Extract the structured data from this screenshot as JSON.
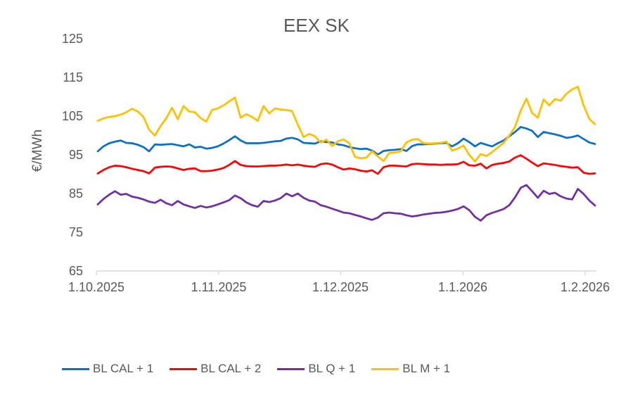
{
  "colors": {
    "text": "#595959",
    "axis": "#d9d9d9",
    "background": "#ffffff"
  },
  "chart_data": {
    "type": "line",
    "title": "EEX SK",
    "xlabel": "",
    "ylabel": "€/MWh",
    "ylim": [
      65,
      125
    ],
    "y_ticks": [
      65,
      75,
      85,
      95,
      105,
      115,
      125
    ],
    "y_tick_labels": [
      "125",
      "115",
      "105",
      "95",
      "85",
      "75",
      "65"
    ],
    "x_tick_labels": [
      "1.10.2025",
      "1.11.2025",
      "1.12.2025",
      "1.1.2026",
      "1.2.2026"
    ],
    "grid": false,
    "legend_position": "bottom",
    "series": [
      {
        "name": "BL CAL + 1",
        "color": "#0b6fc4",
        "values": [
          95.9,
          97.2,
          98.0,
          98.4,
          98.7,
          98.1,
          98.0,
          97.6,
          97.0,
          95.9,
          97.7,
          97.6,
          97.7,
          97.8,
          97.5,
          97.2,
          97.7,
          96.9,
          97.1,
          96.6,
          96.8,
          97.2,
          97.9,
          98.8,
          99.8,
          98.7,
          98.0,
          98.0,
          98.0,
          98.1,
          98.3,
          98.5,
          98.6,
          99.2,
          99.4,
          99.0,
          98.1,
          98.0,
          97.9,
          98.5,
          98.3,
          98.2,
          97.7,
          97.5,
          97.0,
          96.7,
          96.5,
          96.6,
          96.1,
          95.1,
          96.0,
          96.2,
          96.3,
          96.5,
          96.0,
          97.3,
          97.7,
          97.7,
          97.8,
          97.9,
          98.0,
          98.1,
          97.2,
          98.0,
          99.2,
          98.3,
          97.2,
          98.1,
          97.6,
          97.2,
          98.0,
          98.7,
          99.8,
          100.9,
          102.2,
          101.8,
          101.2,
          99.6,
          100.9,
          100.6,
          100.3,
          99.9,
          99.4,
          99.6,
          100.0,
          99.1,
          98.2,
          97.8
        ]
      },
      {
        "name": "BL CAL + 2",
        "color": "#fe0000",
        "values": [
          90.2,
          91.1,
          91.8,
          92.2,
          92.1,
          91.8,
          91.4,
          91.1,
          90.8,
          90.2,
          91.7,
          91.9,
          92.0,
          91.9,
          91.5,
          91.1,
          91.4,
          91.5,
          90.8,
          90.8,
          90.9,
          91.2,
          91.6,
          92.4,
          93.4,
          92.4,
          92.1,
          92.0,
          92.0,
          92.1,
          92.2,
          92.2,
          92.3,
          92.5,
          92.3,
          92.5,
          92.2,
          92.0,
          91.9,
          92.6,
          92.8,
          92.5,
          91.8,
          91.2,
          91.5,
          91.3,
          90.9,
          90.7,
          91.0,
          90.1,
          91.8,
          92.2,
          92.2,
          92.1,
          92.0,
          92.6,
          92.7,
          92.6,
          92.5,
          92.5,
          92.4,
          92.5,
          92.5,
          92.6,
          93.2,
          92.3,
          92.2,
          92.7,
          91.5,
          92.4,
          92.7,
          92.9,
          93.3,
          94.3,
          94.9,
          94.0,
          93.0,
          92.1,
          92.8,
          92.6,
          92.4,
          92.1,
          91.9,
          91.7,
          91.8,
          90.4,
          90.1,
          90.2
        ]
      },
      {
        "name": "BL Q + 1",
        "color": "#7030a0",
        "values": [
          82.2,
          83.6,
          84.7,
          85.6,
          84.7,
          84.9,
          84.2,
          83.9,
          83.5,
          82.9,
          82.6,
          83.4,
          82.5,
          82.0,
          83.1,
          82.2,
          81.7,
          81.3,
          81.8,
          81.4,
          81.7,
          82.2,
          82.7,
          83.3,
          84.5,
          83.8,
          82.7,
          82.0,
          81.6,
          83.1,
          82.8,
          83.2,
          83.8,
          85.0,
          84.3,
          85.0,
          83.9,
          83.2,
          82.9,
          82.0,
          81.6,
          81.1,
          80.6,
          80.1,
          79.9,
          79.5,
          79.1,
          78.6,
          78.2,
          78.8,
          79.9,
          80.1,
          79.9,
          79.8,
          79.4,
          79.1,
          79.3,
          79.6,
          79.8,
          80.0,
          80.1,
          80.3,
          80.6,
          81.0,
          81.7,
          80.7,
          79.0,
          78.0,
          79.4,
          80.0,
          80.5,
          81.0,
          82.0,
          84.0,
          86.5,
          87.2,
          85.6,
          83.9,
          85.7,
          84.9,
          85.2,
          84.3,
          83.7,
          83.5,
          86.2,
          84.9,
          83.2,
          81.9
        ]
      },
      {
        "name": "BL M + 1",
        "color": "#ffc000",
        "values": [
          103.8,
          104.4,
          104.8,
          105.0,
          105.4,
          106.0,
          106.9,
          106.2,
          104.8,
          101.5,
          100.0,
          102.5,
          104.5,
          107.2,
          104.2,
          107.6,
          106.2,
          106.0,
          104.5,
          103.6,
          106.6,
          107.0,
          107.8,
          108.8,
          109.8,
          104.6,
          105.5,
          104.8,
          103.8,
          107.6,
          105.7,
          107.0,
          106.7,
          106.6,
          106.3,
          102.8,
          99.6,
          100.4,
          99.8,
          98.2,
          98.9,
          97.3,
          98.5,
          99.0,
          98.0,
          94.5,
          94.1,
          94.3,
          95.9,
          94.6,
          93.4,
          95.5,
          95.6,
          95.9,
          98.2,
          98.9,
          99.1,
          98.0,
          97.9,
          98.0,
          98.1,
          98.4,
          96.1,
          96.6,
          97.4,
          95.0,
          93.3,
          95.2,
          94.7,
          95.7,
          96.9,
          98.1,
          100.0,
          102.2,
          106.5,
          109.5,
          105.8,
          104.6,
          109.3,
          107.8,
          109.4,
          109.0,
          110.8,
          111.9,
          112.6,
          107.8,
          104.3,
          102.9
        ]
      }
    ]
  }
}
